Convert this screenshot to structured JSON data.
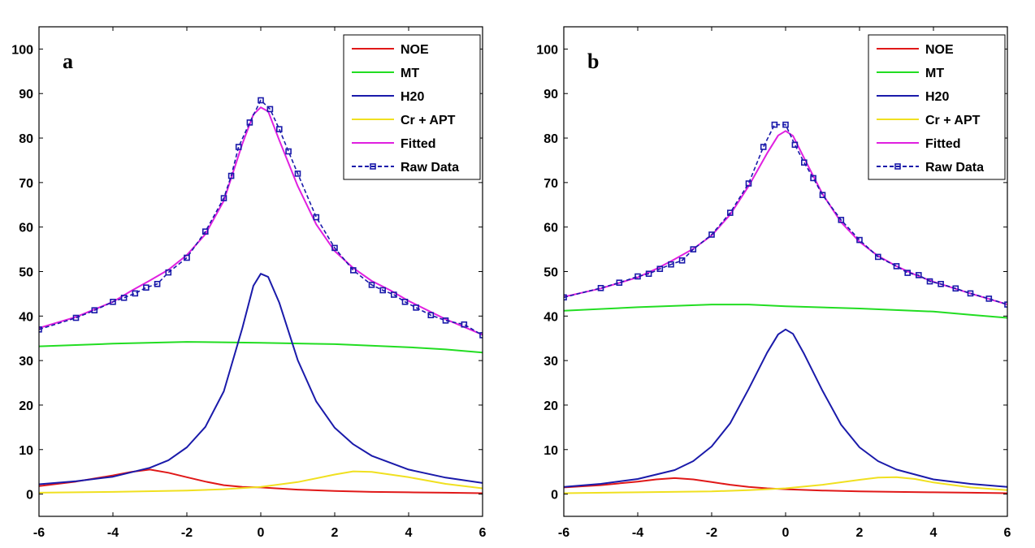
{
  "chart_data": [
    {
      "type": "line",
      "panel_label": "a",
      "xlim": [
        -6,
        6
      ],
      "ylim": [
        -5,
        105
      ],
      "xticks": [
        -6,
        -4,
        -2,
        0,
        2,
        4,
        6
      ],
      "yticks": [
        0,
        10,
        20,
        30,
        40,
        50,
        60,
        70,
        80,
        90,
        100
      ],
      "legend_position": "top-right",
      "series": [
        {
          "name": "NOE",
          "color": "#e01818",
          "style": "solid",
          "x": [
            -6,
            -5,
            -4,
            -3.5,
            -3,
            -2.5,
            -2,
            -1.5,
            -1,
            -0.5,
            0,
            1,
            2,
            3,
            4,
            5,
            6
          ],
          "y": [
            1.8,
            2.8,
            4.2,
            5.0,
            5.5,
            4.8,
            3.8,
            2.8,
            2.0,
            1.6,
            1.5,
            1.0,
            0.7,
            0.5,
            0.4,
            0.3,
            0.2
          ]
        },
        {
          "name": "MT",
          "color": "#22dd22",
          "style": "solid",
          "x": [
            -6,
            -4,
            -2,
            0,
            2,
            4,
            5,
            6
          ],
          "y": [
            33.2,
            33.8,
            34.2,
            34.0,
            33.7,
            33.0,
            32.5,
            31.8
          ]
        },
        {
          "name": "H20",
          "color": "#1a1aaa",
          "style": "solid",
          "x": [
            -6,
            -5,
            -4,
            -3,
            -2.5,
            -2,
            -1.5,
            -1,
            -0.5,
            -0.2,
            0,
            0.2,
            0.5,
            1,
            1.5,
            2,
            2.5,
            3,
            4,
            5,
            6
          ],
          "y": [
            2.2,
            2.9,
            3.9,
            5.9,
            7.6,
            10.5,
            15.1,
            23.1,
            37.3,
            46.8,
            49.5,
            48.8,
            43.0,
            30.1,
            20.8,
            14.9,
            11.2,
            8.6,
            5.5,
            3.7,
            2.5
          ]
        },
        {
          "name": "Cr + APT",
          "color": "#f0e020",
          "style": "solid",
          "x": [
            -6,
            -4,
            -2,
            -1,
            0,
            1,
            2,
            2.5,
            3,
            4,
            5,
            6
          ],
          "y": [
            0.3,
            0.5,
            0.8,
            1.1,
            1.6,
            2.7,
            4.4,
            5.1,
            5.0,
            3.8,
            2.3,
            1.3
          ]
        },
        {
          "name": "Fitted",
          "color": "#e020e0",
          "style": "solid",
          "x": [
            -6,
            -5,
            -4,
            -3.5,
            -3,
            -2.5,
            -2,
            -1.5,
            -1,
            -0.5,
            -0.2,
            0,
            0.2,
            0.5,
            1,
            1.5,
            2,
            2.5,
            3,
            3.5,
            4,
            5,
            6
          ],
          "y": [
            37.3,
            39.8,
            43.2,
            45.7,
            48.0,
            50.4,
            53.7,
            58.4,
            65.9,
            78.7,
            85.3,
            86.9,
            86.0,
            79.5,
            69.2,
            60.6,
            54.6,
            50.8,
            47.9,
            45.8,
            43.4,
            39.3,
            35.8
          ]
        },
        {
          "name": "Raw Data",
          "color": "#1a1aaa",
          "style": "dashed",
          "marker": "square",
          "x": [
            -6,
            -5,
            -4.5,
            -4,
            -3.7,
            -3.4,
            -3.1,
            -2.8,
            -2.5,
            -2,
            -1.5,
            -1,
            -0.8,
            -0.6,
            -0.3,
            0,
            0.25,
            0.5,
            0.75,
            1,
            1.5,
            2,
            2.5,
            3,
            3.3,
            3.6,
            3.9,
            4.2,
            4.6,
            5,
            5.5,
            6
          ],
          "y": [
            37.0,
            39.6,
            41.3,
            43.2,
            44.1,
            45.1,
            46.4,
            47.2,
            49.8,
            53.1,
            59.0,
            66.5,
            71.5,
            78.0,
            83.5,
            88.5,
            86.5,
            82.0,
            77.0,
            72.0,
            62.2,
            55.3,
            50.3,
            47.0,
            45.8,
            44.8,
            43.2,
            41.9,
            40.2,
            39.0,
            38.1,
            35.7
          ]
        }
      ]
    },
    {
      "type": "line",
      "panel_label": "b",
      "xlim": [
        -6,
        6
      ],
      "ylim": [
        -5,
        105
      ],
      "xticks": [
        -6,
        -4,
        -2,
        0,
        2,
        4,
        6
      ],
      "yticks": [
        0,
        10,
        20,
        30,
        40,
        50,
        60,
        70,
        80,
        90,
        100
      ],
      "legend_position": "top-right",
      "series": [
        {
          "name": "NOE",
          "color": "#e01818",
          "style": "solid",
          "x": [
            -6,
            -5,
            -4,
            -3.5,
            -3,
            -2.5,
            -2,
            -1.5,
            -1,
            -0.5,
            0,
            1,
            2,
            3,
            4,
            5,
            6
          ],
          "y": [
            1.5,
            2.0,
            2.8,
            3.3,
            3.6,
            3.3,
            2.7,
            2.1,
            1.6,
            1.3,
            1.1,
            0.8,
            0.6,
            0.5,
            0.4,
            0.3,
            0.2
          ]
        },
        {
          "name": "MT",
          "color": "#22dd22",
          "style": "solid",
          "x": [
            -6,
            -4,
            -2,
            -1,
            0,
            2,
            4,
            5,
            6
          ],
          "y": [
            41.2,
            42.0,
            42.6,
            42.6,
            42.2,
            41.7,
            41.0,
            40.3,
            39.6
          ]
        },
        {
          "name": "H20",
          "color": "#1a1aaa",
          "style": "solid",
          "x": [
            -6,
            -5,
            -4,
            -3,
            -2.5,
            -2,
            -1.5,
            -1,
            -0.5,
            -0.2,
            0,
            0.2,
            0.5,
            1,
            1.5,
            2,
            2.5,
            3,
            4,
            5,
            6
          ],
          "y": [
            1.6,
            2.3,
            3.4,
            5.4,
            7.4,
            10.7,
            15.9,
            23.6,
            31.8,
            35.9,
            37.0,
            36.0,
            31.5,
            23.2,
            15.6,
            10.5,
            7.4,
            5.5,
            3.3,
            2.3,
            1.6
          ]
        },
        {
          "name": "Cr + APT",
          "color": "#f0e020",
          "style": "solid",
          "x": [
            -6,
            -4,
            -2,
            -1,
            0,
            1,
            2,
            2.5,
            3,
            3.5,
            4,
            5,
            6
          ],
          "y": [
            0.2,
            0.4,
            0.6,
            0.9,
            1.3,
            2.1,
            3.2,
            3.7,
            3.8,
            3.4,
            2.6,
            1.5,
            0.9
          ]
        },
        {
          "name": "Fitted",
          "color": "#e020e0",
          "style": "solid",
          "x": [
            -6,
            -5,
            -4,
            -3.5,
            -3,
            -2.5,
            -2,
            -1.5,
            -1,
            -0.5,
            -0.2,
            0,
            0.2,
            0.5,
            1,
            1.5,
            2,
            2.5,
            3,
            3.5,
            4,
            5,
            6
          ],
          "y": [
            44.3,
            46.2,
            48.7,
            50.6,
            52.8,
            55.1,
            58.1,
            62.8,
            69.2,
            76.6,
            80.6,
            81.6,
            80.5,
            75.5,
            67.4,
            61.1,
            56.7,
            53.5,
            51.2,
            49.3,
            47.7,
            45.1,
            42.6
          ]
        },
        {
          "name": "Raw Data",
          "color": "#1a1aaa",
          "style": "dashed",
          "marker": "square",
          "x": [
            -6,
            -5,
            -4.5,
            -4,
            -3.7,
            -3.4,
            -3.1,
            -2.8,
            -2.5,
            -2,
            -1.5,
            -1,
            -0.6,
            -0.3,
            0,
            0.25,
            0.5,
            0.75,
            1,
            1.5,
            2,
            2.5,
            3,
            3.3,
            3.6,
            3.9,
            4.2,
            4.6,
            5,
            5.5,
            6
          ],
          "y": [
            44.2,
            46.3,
            47.5,
            48.9,
            49.5,
            50.6,
            51.6,
            52.5,
            55.0,
            58.3,
            63.2,
            69.8,
            78.0,
            83.0,
            83.0,
            78.5,
            74.5,
            71.0,
            67.2,
            61.6,
            57.1,
            53.3,
            51.2,
            49.7,
            49.2,
            47.8,
            47.2,
            46.2,
            45.1,
            43.9,
            42.6
          ]
        }
      ]
    }
  ]
}
